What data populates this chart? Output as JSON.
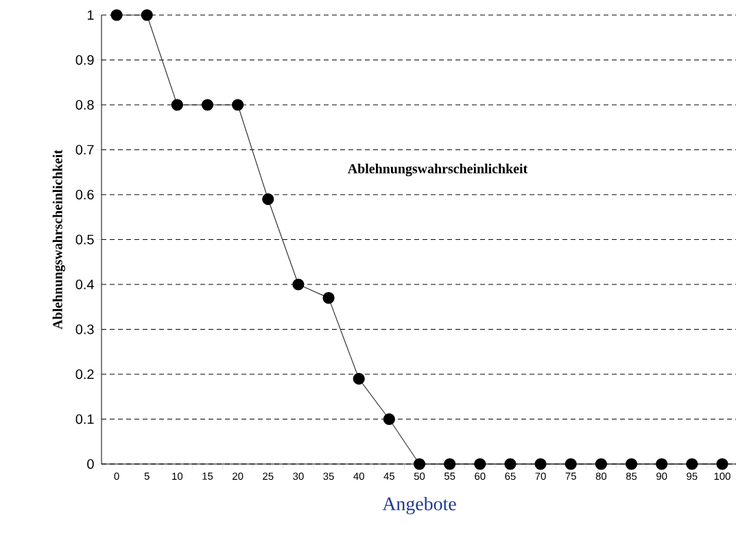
{
  "chart_data": {
    "type": "line",
    "xlabel": "Angebote",
    "ylabel": "Ablehnungswahrscheinlichkeit",
    "annotations": [
      "Ablehnungswahrscheinlichkeit"
    ],
    "categories": [
      "0",
      "5",
      "10",
      "15",
      "20",
      "25",
      "30",
      "35",
      "40",
      "45",
      "50",
      "55",
      "60",
      "65",
      "70",
      "75",
      "80",
      "85",
      "90",
      "95",
      "100"
    ],
    "values": [
      1,
      1,
      0.8,
      0.8,
      0.8,
      0.59,
      0.4,
      0.37,
      0.19,
      0.1,
      0,
      0,
      0,
      0,
      0,
      0,
      0,
      0,
      0,
      0,
      0
    ],
    "color": "#000000",
    "ylim": [
      0,
      1
    ],
    "yticks": [
      0,
      0.1,
      0.2,
      0.3,
      0.4,
      0.5,
      0.6,
      0.7,
      0.8,
      0.9,
      1
    ],
    "grid": "y",
    "marker": "circle",
    "line_style": "solid"
  }
}
